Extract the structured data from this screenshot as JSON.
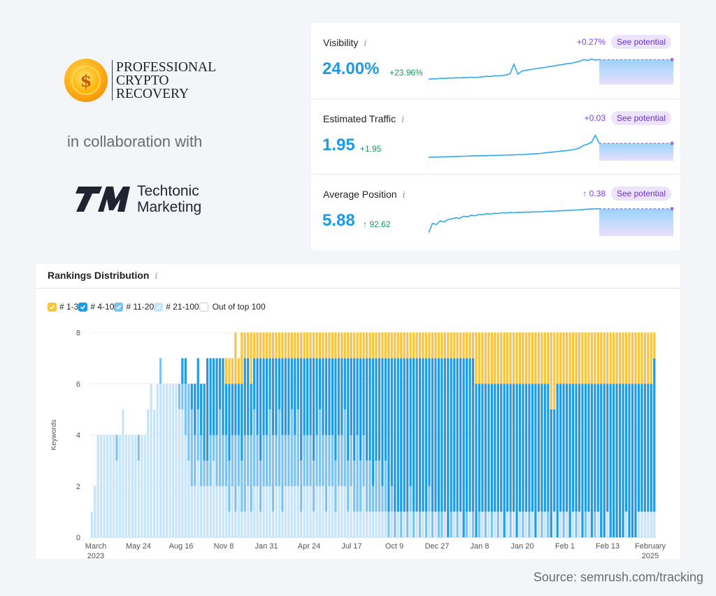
{
  "logo": {
    "line1": "PROFESSIONAL",
    "line2": "CRYPTO",
    "line3": "RECOVERY",
    "icon": "dollar-coin-icon",
    "coin_color": "#ffb21a"
  },
  "collab_text": "in collaboration with",
  "partner": {
    "mark": "TM",
    "line1": "Techtonic",
    "line2": "Marketing"
  },
  "metrics": [
    {
      "label": "Visibility",
      "info": "i",
      "value": "24.00%",
      "delta": "+23.96%",
      "change": "+0.27%",
      "button": "See potential",
      "trend": [
        0.1,
        0.12,
        0.11,
        0.14,
        0.13,
        0.15,
        0.14,
        0.16,
        0.15,
        0.17,
        0.16,
        0.18,
        0.17,
        0.18,
        0.2,
        0.22,
        0.21,
        0.24,
        0.23,
        0.25,
        0.27,
        0.32,
        0.7,
        0.3,
        0.42,
        0.45,
        0.48,
        0.5,
        0.53,
        0.55,
        0.57,
        0.6,
        0.62,
        0.65,
        0.67,
        0.7,
        0.72,
        0.74,
        0.78,
        0.82,
        0.88,
        0.85,
        0.9,
        0.86,
        0.88
      ]
    },
    {
      "label": "Estimated Traffic",
      "info": "i",
      "value": "1.95",
      "delta": "+1.95",
      "change": "+0.03",
      "button": "See potential",
      "trend": [
        0.02,
        0.03,
        0.03,
        0.04,
        0.04,
        0.05,
        0.05,
        0.06,
        0.06,
        0.07,
        0.07,
        0.08,
        0.08,
        0.08,
        0.09,
        0.09,
        0.1,
        0.1,
        0.1,
        0.11,
        0.11,
        0.12,
        0.12,
        0.13,
        0.13,
        0.14,
        0.15,
        0.16,
        0.17,
        0.18,
        0.2,
        0.22,
        0.23,
        0.25,
        0.27,
        0.28,
        0.3,
        0.32,
        0.35,
        0.4,
        0.5,
        0.55,
        0.62,
        0.9,
        0.58
      ]
    },
    {
      "label": "Average Position",
      "info": "i",
      "value": "5.88",
      "delta": "↑ 92.62",
      "change": "↑ 0.38",
      "button": "See potential",
      "trend": [
        0.02,
        0.4,
        0.35,
        0.5,
        0.45,
        0.55,
        0.58,
        0.62,
        0.6,
        0.68,
        0.66,
        0.72,
        0.7,
        0.75,
        0.74,
        0.78,
        0.76,
        0.8,
        0.79,
        0.82,
        0.81,
        0.83,
        0.82,
        0.84,
        0.83,
        0.85,
        0.84,
        0.86,
        0.85,
        0.86,
        0.87,
        0.88,
        0.88,
        0.89,
        0.9,
        0.9,
        0.91,
        0.92,
        0.93,
        0.94,
        0.95,
        0.96,
        0.97,
        0.97,
        0.98
      ]
    }
  ],
  "rankings": {
    "title": "Rankings Distribution",
    "info": "i",
    "legend": [
      {
        "label": "# 1-3",
        "color": "#fbc43f",
        "checked": true
      },
      {
        "label": "# 4-10",
        "color": "#1e9be8",
        "checked": true
      },
      {
        "label": "# 11-20",
        "color": "#7cc3f3",
        "checked": true
      },
      {
        "label": "# 21-100",
        "color": "#c6e4fb",
        "checked": true
      },
      {
        "label": "Out of top 100",
        "color": "#ffffff",
        "checked": false
      }
    ]
  },
  "chart_data": {
    "type": "bar",
    "stacked": true,
    "title": "Rankings Distribution",
    "ylabel": "Keywords",
    "ylim": [
      0,
      8
    ],
    "yticks": [
      0,
      2,
      4,
      6,
      8
    ],
    "grid": true,
    "legend_position": "top-left",
    "x_tick_labels": [
      "March\n2023",
      "May 24",
      "Aug 16",
      "Nov 8",
      "Jan 31",
      "Apr 24",
      "Jul 17",
      "Oct 9",
      "Dec 27",
      "Jan 8",
      "Jan 20",
      "Feb 1",
      "Feb 13",
      "February\n2025"
    ],
    "series_order": [
      "# 21-100",
      "# 11-20",
      "# 4-10",
      "# 1-3"
    ],
    "colors": {
      "# 1-3": "#fbc43f",
      "# 4-10": "#1e9be8",
      "# 11-20": "#7cc3f3",
      "# 21-100": "#c6e4fb"
    },
    "bars": [
      [
        1,
        0,
        0,
        0
      ],
      [
        2,
        0,
        0,
        0
      ],
      [
        4,
        0,
        0,
        0
      ],
      [
        4,
        0,
        0,
        0
      ],
      [
        4,
        0,
        0,
        0
      ],
      [
        4,
        0,
        0,
        0
      ],
      [
        4,
        0,
        0,
        0
      ],
      [
        4,
        0,
        0,
        0
      ],
      [
        3,
        1,
        0,
        0
      ],
      [
        4,
        0,
        0,
        0
      ],
      [
        5,
        0,
        0,
        0
      ],
      [
        4,
        0,
        0,
        0
      ],
      [
        4,
        0,
        0,
        0
      ],
      [
        4,
        0,
        0,
        0
      ],
      [
        4,
        0,
        0,
        0
      ],
      [
        3,
        1,
        0,
        0
      ],
      [
        4,
        0,
        0,
        0
      ],
      [
        4,
        0,
        0,
        0
      ],
      [
        5,
        0,
        0,
        0
      ],
      [
        6,
        0,
        0,
        0
      ],
      [
        5,
        0,
        0,
        0
      ],
      [
        6,
        0,
        0,
        0
      ],
      [
        6,
        1,
        0,
        0
      ],
      [
        6,
        0,
        0,
        0
      ],
      [
        6,
        0,
        0,
        0
      ],
      [
        6,
        0,
        0,
        0
      ],
      [
        6,
        0,
        0,
        0
      ],
      [
        6,
        0,
        0,
        0
      ],
      [
        5,
        1,
        0,
        0
      ],
      [
        5,
        1,
        1,
        0
      ],
      [
        4,
        2,
        1,
        0
      ],
      [
        3,
        3,
        0,
        0
      ],
      [
        2,
        3,
        1,
        0
      ],
      [
        2,
        2,
        2,
        0
      ],
      [
        3,
        2,
        2,
        0
      ],
      [
        2,
        2,
        2,
        0
      ],
      [
        2,
        1,
        3,
        0
      ],
      [
        2,
        1,
        4,
        0
      ],
      [
        2,
        2,
        3,
        0
      ],
      [
        3,
        1,
        3,
        0
      ],
      [
        2,
        2,
        3,
        0
      ],
      [
        2,
        3,
        2,
        0
      ],
      [
        2,
        2,
        3,
        0
      ],
      [
        2,
        2,
        2,
        1
      ],
      [
        1,
        2,
        3,
        1
      ],
      [
        2,
        2,
        2,
        1
      ],
      [
        1,
        3,
        2,
        2
      ],
      [
        2,
        2,
        2,
        1
      ],
      [
        1,
        2,
        3,
        2
      ],
      [
        1,
        3,
        3,
        1
      ],
      [
        2,
        2,
        3,
        1
      ],
      [
        1,
        3,
        2,
        2
      ],
      [
        2,
        3,
        2,
        1
      ],
      [
        2,
        2,
        3,
        1
      ],
      [
        1,
        2,
        4,
        1
      ],
      [
        2,
        2,
        3,
        1
      ],
      [
        2,
        2,
        3,
        1
      ],
      [
        2,
        3,
        2,
        1
      ],
      [
        1,
        3,
        3,
        1
      ],
      [
        2,
        2,
        3,
        1
      ],
      [
        2,
        3,
        2,
        1
      ],
      [
        1,
        3,
        3,
        1
      ],
      [
        2,
        2,
        3,
        1
      ],
      [
        2,
        2,
        3,
        1
      ],
      [
        2,
        3,
        2,
        1
      ],
      [
        2,
        2,
        3,
        1
      ],
      [
        2,
        3,
        2,
        1
      ],
      [
        1,
        2,
        4,
        1
      ],
      [
        2,
        2,
        3,
        1
      ],
      [
        2,
        2,
        3,
        1
      ],
      [
        2,
        2,
        3,
        1
      ],
      [
        1,
        2,
        4,
        1
      ],
      [
        2,
        2,
        3,
        1
      ],
      [
        2,
        3,
        2,
        1
      ],
      [
        2,
        2,
        3,
        1
      ],
      [
        1,
        3,
        3,
        1
      ],
      [
        2,
        2,
        3,
        1
      ],
      [
        2,
        2,
        3,
        1
      ],
      [
        1,
        2,
        4,
        1
      ],
      [
        2,
        2,
        3,
        1
      ],
      [
        2,
        2,
        3,
        1
      ],
      [
        2,
        3,
        2,
        1
      ],
      [
        1,
        2,
        4,
        1
      ],
      [
        2,
        2,
        3,
        1
      ],
      [
        1,
        2,
        4,
        1
      ],
      [
        1,
        3,
        3,
        1
      ],
      [
        1,
        2,
        4,
        1
      ],
      [
        2,
        2,
        3,
        1
      ],
      [
        1,
        2,
        4,
        1
      ],
      [
        1,
        2,
        4,
        1
      ],
      [
        1,
        1,
        5,
        1
      ],
      [
        1,
        2,
        4,
        1
      ],
      [
        1,
        2,
        4,
        1
      ],
      [
        1,
        1,
        5,
        1
      ],
      [
        1,
        2,
        4,
        1
      ],
      [
        0,
        1,
        6,
        1
      ],
      [
        1,
        1,
        5,
        1
      ],
      [
        0,
        1,
        6,
        1
      ],
      [
        1,
        0,
        6,
        1
      ],
      [
        0,
        1,
        6,
        1
      ],
      [
        1,
        0,
        6,
        1
      ],
      [
        0,
        1,
        6,
        1
      ],
      [
        1,
        1,
        5,
        1
      ],
      [
        0,
        1,
        6,
        1
      ],
      [
        1,
        0,
        6,
        1
      ],
      [
        0,
        1,
        6,
        1
      ],
      [
        1,
        0,
        6,
        1
      ],
      [
        0,
        1,
        6,
        1
      ],
      [
        1,
        1,
        5,
        1
      ],
      [
        0,
        1,
        6,
        1
      ],
      [
        1,
        0,
        6,
        1
      ],
      [
        0,
        1,
        6,
        1
      ],
      [
        0,
        1,
        6,
        1
      ],
      [
        1,
        0,
        6,
        1
      ],
      [
        0,
        0,
        7,
        1
      ],
      [
        0,
        1,
        6,
        1
      ],
      [
        1,
        0,
        6,
        1
      ],
      [
        0,
        1,
        6,
        1
      ],
      [
        1,
        0,
        6,
        1
      ],
      [
        0,
        0,
        7,
        1
      ],
      [
        0,
        1,
        6,
        1
      ],
      [
        1,
        0,
        6,
        1
      ],
      [
        0,
        1,
        6,
        1
      ],
      [
        0,
        0,
        6,
        2
      ],
      [
        0,
        1,
        5,
        2
      ],
      [
        1,
        0,
        5,
        2
      ],
      [
        0,
        1,
        5,
        2
      ],
      [
        1,
        0,
        5,
        2
      ],
      [
        0,
        1,
        5,
        2
      ],
      [
        1,
        0,
        5,
        2
      ],
      [
        0,
        1,
        5,
        2
      ],
      [
        1,
        0,
        5,
        2
      ],
      [
        0,
        0,
        6,
        2
      ],
      [
        1,
        0,
        5,
        2
      ],
      [
        0,
        1,
        5,
        2
      ],
      [
        1,
        0,
        5,
        2
      ],
      [
        0,
        0,
        6,
        2
      ],
      [
        1,
        0,
        5,
        2
      ],
      [
        0,
        1,
        5,
        2
      ],
      [
        1,
        0,
        5,
        2
      ],
      [
        0,
        1,
        5,
        2
      ],
      [
        1,
        0,
        5,
        2
      ],
      [
        0,
        0,
        6,
        2
      ],
      [
        1,
        0,
        5,
        2
      ],
      [
        0,
        1,
        5,
        2
      ],
      [
        1,
        0,
        5,
        2
      ],
      [
        0,
        1,
        5,
        2
      ],
      [
        0,
        0,
        5,
        3
      ],
      [
        1,
        0,
        4,
        3
      ],
      [
        0,
        0,
        6,
        2
      ],
      [
        1,
        0,
        5,
        2
      ],
      [
        0,
        1,
        5,
        2
      ],
      [
        1,
        0,
        5,
        2
      ],
      [
        0,
        0,
        6,
        2
      ],
      [
        1,
        0,
        5,
        2
      ],
      [
        0,
        1,
        5,
        2
      ],
      [
        1,
        0,
        5,
        2
      ],
      [
        0,
        0,
        6,
        2
      ],
      [
        0,
        1,
        5,
        2
      ],
      [
        1,
        0,
        5,
        2
      ],
      [
        0,
        0,
        6,
        2
      ],
      [
        0,
        1,
        5,
        2
      ],
      [
        1,
        0,
        5,
        2
      ],
      [
        0,
        0,
        6,
        2
      ],
      [
        0,
        0,
        6,
        2
      ],
      [
        1,
        0,
        5,
        2
      ],
      [
        0,
        0,
        6,
        2
      ],
      [
        0,
        0,
        6,
        2
      ],
      [
        0,
        0,
        6,
        2
      ],
      [
        0,
        0,
        6,
        2
      ],
      [
        0,
        0,
        6,
        2
      ],
      [
        1,
        0,
        5,
        2
      ],
      [
        0,
        0,
        6,
        2
      ],
      [
        0,
        0,
        6,
        2
      ],
      [
        0,
        0,
        6,
        2
      ],
      [
        1,
        0,
        5,
        2
      ],
      [
        1,
        0,
        5,
        2
      ],
      [
        1,
        0,
        5,
        2
      ],
      [
        1,
        0,
        5,
        2
      ],
      [
        1,
        0,
        5,
        2
      ],
      [
        1,
        0,
        6,
        1
      ]
    ]
  },
  "source": "Source: semrush.com/tracking"
}
